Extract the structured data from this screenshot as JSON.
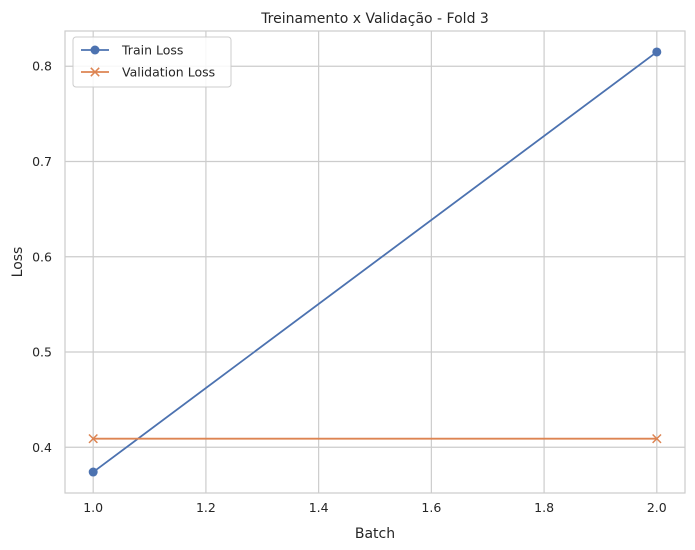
{
  "chart_data": {
    "type": "line",
    "title": "Treinamento x Validação - Fold 3",
    "xlabel": "Batch",
    "ylabel": "Loss",
    "xlim": [
      0.95,
      2.05
    ],
    "ylim": [
      0.352,
      0.837
    ],
    "xticks": [
      1.0,
      1.2,
      1.4,
      1.6,
      1.8,
      2.0
    ],
    "xtick_labels": [
      "1.0",
      "1.2",
      "1.4",
      "1.6",
      "1.8",
      "2.0"
    ],
    "yticks": [
      0.4,
      0.5,
      0.6,
      0.7,
      0.8
    ],
    "ytick_labels": [
      "0.4",
      "0.5",
      "0.6",
      "0.7",
      "0.8"
    ],
    "grid": true,
    "legend_position": "top-left",
    "series": [
      {
        "name": "Train Loss",
        "x": [
          1.0,
          2.0
        ],
        "y": [
          0.374,
          0.815
        ],
        "color": "#4c72b0",
        "marker": "circle"
      },
      {
        "name": "Validation Loss",
        "x": [
          1.0,
          2.0
        ],
        "y": [
          0.409,
          0.409
        ],
        "color": "#dd8452",
        "marker": "x"
      }
    ]
  }
}
